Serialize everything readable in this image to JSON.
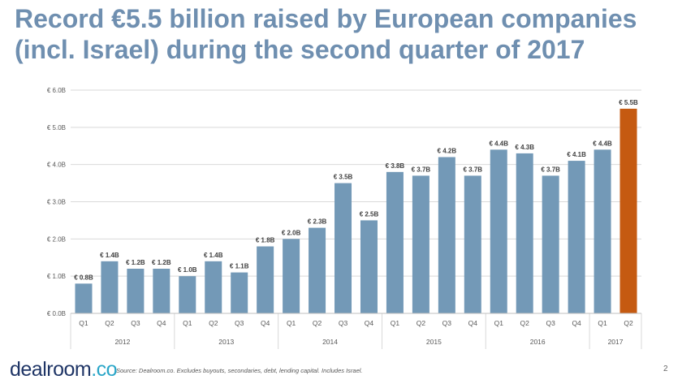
{
  "title": {
    "line1": "Record €5.5 billion raised by European companies",
    "line2": "(incl. Israel) during the second quarter of 2017"
  },
  "chart_data": {
    "type": "bar",
    "title": "",
    "xlabel": "",
    "ylabel": "",
    "ylim": [
      0,
      6
    ],
    "yticks": [
      "€ 0.0B",
      "€ 1.0B",
      "€ 2.0B",
      "€ 3.0B",
      "€ 4.0B",
      "€ 5.0B",
      "€ 6.0B"
    ],
    "grid": true,
    "categories": [
      "Q1",
      "Q2",
      "Q3",
      "Q4",
      "Q1",
      "Q2",
      "Q3",
      "Q4",
      "Q1",
      "Q2",
      "Q3",
      "Q4",
      "Q1",
      "Q2",
      "Q3",
      "Q4",
      "Q1",
      "Q2",
      "Q3",
      "Q4",
      "Q1",
      "Q2"
    ],
    "values": [
      0.8,
      1.4,
      1.2,
      1.2,
      1.0,
      1.4,
      1.1,
      1.8,
      2.0,
      2.3,
      3.5,
      2.5,
      3.8,
      3.7,
      4.2,
      3.7,
      4.4,
      4.3,
      3.7,
      4.1,
      4.4,
      5.5
    ],
    "data_labels": [
      "€ 0.8B",
      "€ 1.4B",
      "€ 1.2B",
      "€ 1.2B",
      "€ 1.0B",
      "€ 1.4B",
      "€ 1.1B",
      "€ 1.8B",
      "€ 2.0B",
      "€ 2.3B",
      "€ 3.5B",
      "€ 2.5B",
      "€ 3.8B",
      "€ 3.7B",
      "€ 4.2B",
      "€ 3.7B",
      "€ 4.4B",
      "€ 4.3B",
      "€ 3.7B",
      "€ 4.1B",
      "€ 4.4B",
      "€ 5.5B"
    ],
    "years": [
      "2012",
      "2013",
      "2014",
      "2015",
      "2016",
      "2017"
    ],
    "colors": {
      "bar": "#7399b7",
      "highlight": "#c55a11",
      "grid": "#d9d9d9",
      "axis_text": "#595959",
      "label_text": "#404040"
    },
    "highlight_index": 21
  },
  "footer": {
    "logo_main": "dealroom",
    "logo_suffix": ".co",
    "source": "Source: Dealroom.co. Excludes buyouts, secondaries, debt, lending capital. Includes Israel.",
    "page_number": "2"
  }
}
